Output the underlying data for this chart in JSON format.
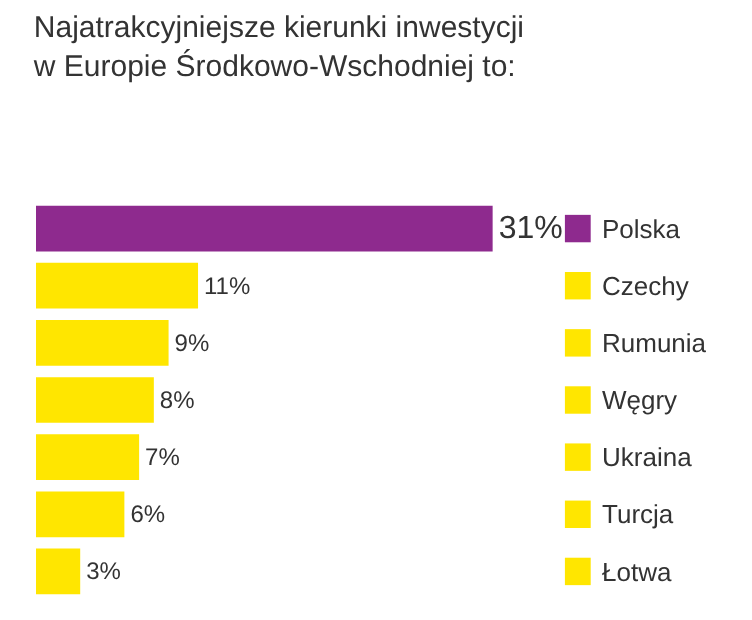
{
  "chart_data": {
    "type": "bar",
    "orientation": "horizontal",
    "title": "Najatrakcyjniejsze kierunki inwestycji\nw Europie Środkowo-Wschodniej to:",
    "categories": [
      "Polska",
      "Czechy",
      "Rumunia",
      "Węgry",
      "Ukraina",
      "Turcja",
      "Łotwa"
    ],
    "values": [
      31,
      11,
      9,
      8,
      7,
      6,
      3
    ],
    "value_labels": [
      "31%",
      "11%",
      "9%",
      "8%",
      "7%",
      "6%",
      "3%"
    ],
    "colors": [
      "#8e2a8e",
      "#ffe600",
      "#ffe600",
      "#ffe600",
      "#ffe600",
      "#ffe600",
      "#ffe600"
    ],
    "tick_labels": "y"
  }
}
